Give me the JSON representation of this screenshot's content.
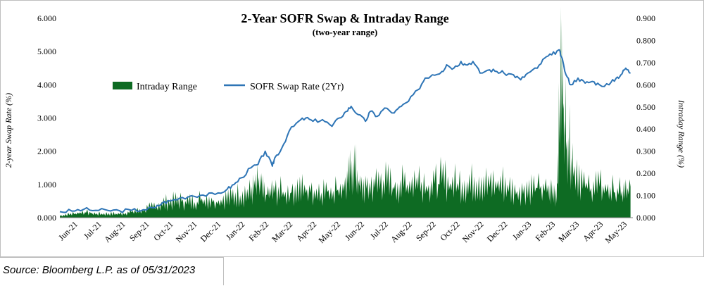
{
  "chart_data": {
    "type": "line+area",
    "title": "2-Year SOFR Swap & Intraday  Range",
    "subtitle": "(two-year   range)",
    "ylabel_left": "2-year Swap Rate (%)",
    "ylabel_right": "Intraday Range (%)",
    "ylim_left": [
      0,
      6
    ],
    "ylim_right": [
      0,
      0.9
    ],
    "left_ticks": [
      "0.000",
      "1.000",
      "2.000",
      "3.000",
      "4.000",
      "5.000",
      "6.000"
    ],
    "right_ticks": [
      "0.000",
      "0.100",
      "0.200",
      "0.300",
      "0.400",
      "0.500",
      "0.600",
      "0.700",
      "0.800",
      "0.900"
    ],
    "x_ticks": [
      "Jun-21",
      "Jul-21",
      "Aug-21",
      "Sep-21",
      "Oct-21",
      "Nov-21",
      "Dec-21",
      "Jan-22",
      "Feb-22",
      "Mar-22",
      "Apr-22",
      "May-22",
      "Jun-22",
      "Jul-22",
      "Aug-22",
      "Sep-22",
      "Oct-22",
      "Nov-22",
      "Dec-22",
      "Jan-23",
      "Feb-23",
      "Mar-23",
      "Apr-23",
      "May-23"
    ],
    "grid": false,
    "legend_position": "top-left",
    "series": [
      {
        "name": "SOFR Swap Rate (2Yr)",
        "type": "line",
        "axis": "left",
        "color": "#2e75b6",
        "x_months": [
          0,
          0.5,
          1,
          1.5,
          2,
          2.5,
          3,
          3.5,
          4,
          4.3,
          4.6,
          5,
          5.5,
          6,
          6.5,
          7,
          7.3,
          7.6,
          8,
          8.3,
          8.6,
          8.9,
          9,
          9.3,
          9.6,
          10,
          10.3,
          10.6,
          11,
          11.4,
          11.7,
          12,
          12.2,
          12.5,
          12.8,
          13,
          13.3,
          13.6,
          14,
          14.3,
          14.6,
          15,
          15.3,
          15.6,
          16,
          16.2,
          16.5,
          16.8,
          17,
          17.3,
          17.6,
          18,
          18.3,
          18.6,
          19,
          19.3,
          19.6,
          20,
          20.3,
          20.6,
          20.9,
          21,
          21.2,
          21.4,
          21.7,
          22,
          22.3,
          22.6,
          23,
          23.3,
          23.5,
          23.7,
          23.9
        ],
        "values": [
          0.18,
          0.2,
          0.25,
          0.22,
          0.22,
          0.21,
          0.22,
          0.24,
          0.3,
          0.45,
          0.5,
          0.58,
          0.66,
          0.68,
          0.7,
          0.85,
          1.0,
          1.2,
          1.5,
          1.6,
          2.0,
          1.55,
          1.8,
          2.1,
          2.6,
          2.9,
          3.0,
          2.9,
          2.95,
          2.75,
          3.0,
          3.2,
          3.35,
          3.1,
          2.9,
          3.2,
          3.05,
          3.3,
          3.15,
          3.35,
          3.5,
          3.85,
          4.2,
          4.3,
          4.4,
          4.6,
          4.5,
          4.7,
          4.6,
          4.7,
          4.35,
          4.45,
          4.4,
          4.35,
          4.3,
          4.15,
          4.35,
          4.5,
          4.8,
          4.9,
          5.05,
          4.85,
          4.3,
          4.0,
          4.2,
          4.05,
          4.1,
          4.0,
          4.0,
          4.2,
          4.3,
          4.5,
          4.35
        ]
      },
      {
        "name": "Intraday Range",
        "type": "area",
        "axis": "right",
        "color": "#0e6b23",
        "x_months": [
          0,
          0.5,
          1,
          1.5,
          2,
          2.5,
          3,
          3.5,
          4,
          4.5,
          5,
          5.5,
          6,
          6.5,
          7,
          7.5,
          8,
          8.3,
          8.6,
          9,
          9.5,
          10,
          10.5,
          11,
          11.5,
          12,
          12.3,
          12.6,
          13,
          13.5,
          14,
          14.5,
          15,
          15.5,
          16,
          16.5,
          17,
          17.5,
          18,
          18.5,
          19,
          19.5,
          20,
          20.5,
          20.8,
          21,
          21.2,
          21.5,
          22,
          22.5,
          23,
          23.5,
          23.9
        ],
        "values": [
          0.01,
          0.02,
          0.03,
          0.02,
          0.02,
          0.02,
          0.03,
          0.04,
          0.06,
          0.08,
          0.09,
          0.08,
          0.1,
          0.09,
          0.1,
          0.12,
          0.13,
          0.18,
          0.12,
          0.14,
          0.13,
          0.15,
          0.14,
          0.14,
          0.15,
          0.17,
          0.28,
          0.15,
          0.16,
          0.2,
          0.16,
          0.18,
          0.2,
          0.17,
          0.2,
          0.18,
          0.17,
          0.19,
          0.17,
          0.18,
          0.14,
          0.15,
          0.16,
          0.14,
          0.12,
          0.76,
          0.45,
          0.28,
          0.16,
          0.17,
          0.15,
          0.13,
          0.14
        ]
      }
    ]
  },
  "source": "Source: Bloomberg L.P. as of 05/31/2023"
}
